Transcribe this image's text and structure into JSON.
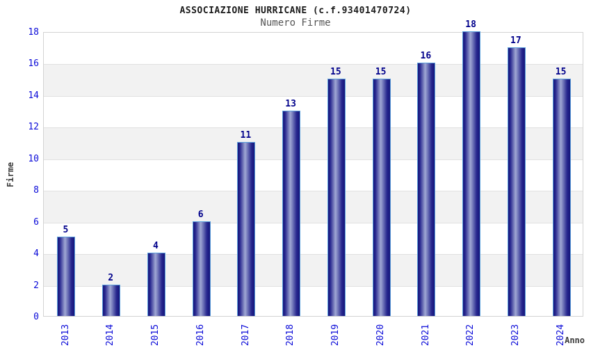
{
  "header": {
    "title": "ASSOCIAZIONE HURRICANE (c.f.93401470724)",
    "subtitle": "Numero Firme"
  },
  "chart_data": {
    "type": "bar",
    "title": "ASSOCIAZIONE HURRICANE (c.f.93401470724)",
    "subtitle": "Numero Firme",
    "categories": [
      "2013",
      "2014",
      "2015",
      "2016",
      "2017",
      "2018",
      "2019",
      "2020",
      "2021",
      "2022",
      "2023",
      "2024"
    ],
    "values": [
      5,
      2,
      4,
      6,
      11,
      13,
      15,
      15,
      16,
      18,
      17,
      15
    ],
    "xlabel": "Anno",
    "ylabel": "Firme",
    "ylim": [
      0,
      18
    ],
    "ytick_step": 2,
    "grid": true,
    "legend": "none",
    "colors": {
      "tick_text": "#0a0ad8",
      "value_text": "#00008b",
      "axis_label_text": "#3d3d3d",
      "subtitle_text": "#555555",
      "band_gray": "#f2f2f2",
      "band_white": "#ffffff",
      "grid_line": "#e0e0e0",
      "plot_border": "#d2d2d2",
      "bar_edge": "#5aa0dd",
      "bar_dark": "#15157a",
      "bar_mid": "#26268e",
      "bar_light": "#a0a8d4"
    }
  }
}
